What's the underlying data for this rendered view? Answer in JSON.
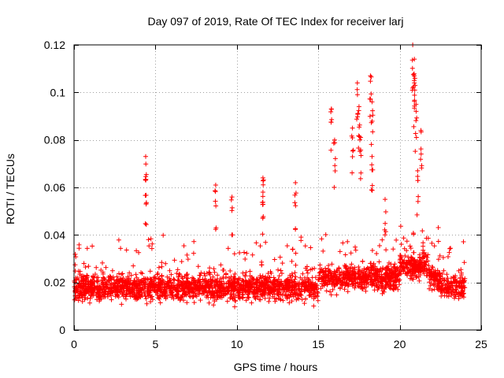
{
  "chart_data": {
    "type": "scatter",
    "title": "Day 097 of 2019, Rate Of TEC Index for receiver larj",
    "xlabel": "GPS time / hours",
    "ylabel": "ROTI / TECUs",
    "xlim": [
      0,
      25
    ],
    "ylim": [
      0,
      0.12
    ],
    "xticks": [
      0,
      5,
      10,
      15,
      20,
      25
    ],
    "yticks": [
      0,
      0.02,
      0.04,
      0.06,
      0.08,
      0.1,
      0.12
    ],
    "xtick_labels": [
      "0",
      "5",
      "10",
      "15",
      "20",
      "25"
    ],
    "ytick_labels": [
      "0",
      "0.02",
      "0.04",
      "0.06",
      "0.08",
      "0.1",
      "0.12"
    ],
    "grid": true,
    "marker": "+",
    "color": "#ff0000",
    "series": [
      {
        "name": "ROTI",
        "data_range_hours": [
          0,
          24
        ],
        "typical_band": [
          0.008,
          0.035
        ],
        "peaks": [
          {
            "x": 4.4,
            "y": 0.073
          },
          {
            "x": 4.4,
            "y": 0.063
          },
          {
            "x": 8.7,
            "y": 0.061
          },
          {
            "x": 9.7,
            "y": 0.056
          },
          {
            "x": 11.6,
            "y": 0.064
          },
          {
            "x": 11.6,
            "y": 0.058
          },
          {
            "x": 13.6,
            "y": 0.062
          },
          {
            "x": 15.8,
            "y": 0.093
          },
          {
            "x": 16.0,
            "y": 0.08
          },
          {
            "x": 17.1,
            "y": 0.085
          },
          {
            "x": 17.4,
            "y": 0.104
          },
          {
            "x": 17.5,
            "y": 0.094
          },
          {
            "x": 17.6,
            "y": 0.081
          },
          {
            "x": 18.2,
            "y": 0.107
          },
          {
            "x": 18.3,
            "y": 0.096
          },
          {
            "x": 18.3,
            "y": 0.073
          },
          {
            "x": 19.1,
            "y": 0.055
          },
          {
            "x": 20.8,
            "y": 0.12
          },
          {
            "x": 20.9,
            "y": 0.114
          },
          {
            "x": 20.9,
            "y": 0.104
          },
          {
            "x": 21.0,
            "y": 0.095
          },
          {
            "x": 21.3,
            "y": 0.084
          },
          {
            "x": 21.1,
            "y": 0.067
          }
        ]
      }
    ]
  }
}
